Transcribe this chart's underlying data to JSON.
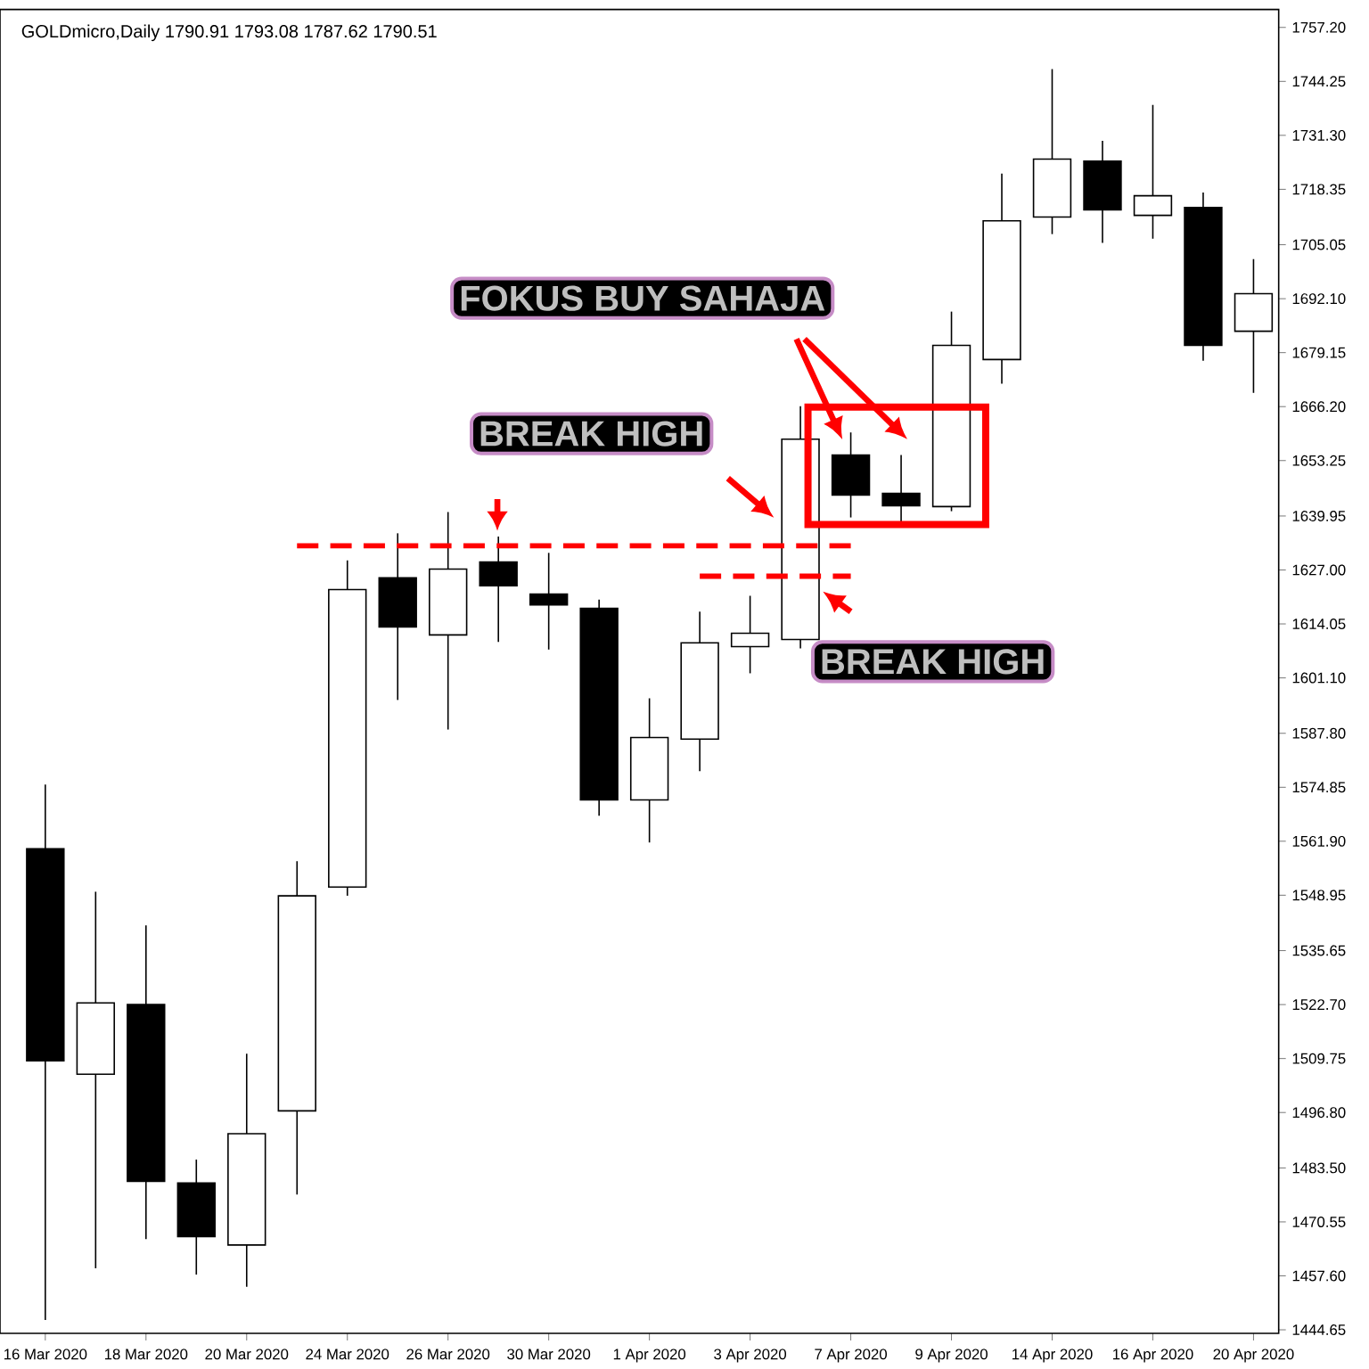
{
  "chart_data": {
    "type": "candlestick",
    "title": "GOLDmicro,Daily  1790.91 1793.08 1787.62 1790.51",
    "categories": [
      "16 Mar 2020",
      null,
      "18 Mar 2020",
      null,
      "20 Mar 2020",
      null,
      "24 Mar 2020",
      null,
      "26 Mar 2020",
      null,
      "30 Mar 2020",
      null,
      "1 Apr 2020",
      null,
      "3 Apr 2020",
      null,
      "7 Apr 2020",
      null,
      "9 Apr 2020",
      null,
      "14 Apr 2020",
      null,
      "16 Apr 2020",
      null,
      "20 Apr 2020"
    ],
    "ohlc": [
      [
        1560.1,
        1575.5,
        1447.0,
        1509.2
      ],
      [
        1506.0,
        1549.8,
        1459.4,
        1523.1
      ],
      [
        1522.7,
        1541.7,
        1466.4,
        1480.3
      ],
      [
        1479.9,
        1485.5,
        1457.9,
        1467.0
      ],
      [
        1465.0,
        1510.9,
        1455.0,
        1491.7
      ],
      [
        1497.2,
        1557.1,
        1477.1,
        1548.8
      ],
      [
        1550.9,
        1629.3,
        1548.8,
        1622.3
      ],
      [
        1625.1,
        1635.8,
        1595.8,
        1613.3
      ],
      [
        1611.4,
        1640.9,
        1588.7,
        1627.2
      ],
      [
        1628.9,
        1635.0,
        1609.7,
        1623.2
      ],
      [
        1621.2,
        1631.1,
        1607.9,
        1618.6
      ],
      [
        1617.8,
        1619.9,
        1568.0,
        1571.8
      ],
      [
        1571.8,
        1596.2,
        1561.6,
        1586.8
      ],
      [
        1586.4,
        1617.0,
        1578.7,
        1609.5
      ],
      [
        1608.6,
        1620.8,
        1602.2,
        1611.8
      ],
      [
        1610.3,
        1666.3,
        1608.2,
        1658.4
      ],
      [
        1654.6,
        1660.0,
        1639.6,
        1645.0
      ],
      [
        1645.4,
        1654.6,
        1638.5,
        1642.4
      ],
      [
        1642.2,
        1689.0,
        1641.1,
        1680.9
      ],
      [
        1677.5,
        1722.1,
        1671.7,
        1710.8
      ],
      [
        1711.7,
        1747.2,
        1707.6,
        1725.6
      ],
      [
        1725.1,
        1730.0,
        1705.5,
        1713.4
      ],
      [
        1712.1,
        1738.6,
        1706.5,
        1716.8
      ],
      [
        1714.0,
        1717.6,
        1677.2,
        1680.9
      ],
      [
        1684.3,
        1701.6,
        1669.5,
        1693.3
      ]
    ],
    "series": [
      {
        "type": "line",
        "color": "#ff0000",
        "line_style": "dashed",
        "values": [
          null,
          null,
          null,
          null,
          null,
          1632.8,
          1632.8,
          1632.8,
          1632.8,
          1632.8,
          1632.8,
          1632.8,
          1632.8,
          1632.8,
          1632.8,
          1632.8,
          1632.8,
          null,
          null,
          null,
          null,
          null,
          null,
          null,
          null
        ]
      },
      {
        "type": "line",
        "color": "#ff0000",
        "line_style": "dashed",
        "values": [
          null,
          null,
          null,
          null,
          null,
          null,
          null,
          null,
          null,
          null,
          null,
          null,
          null,
          1625.5,
          1625.5,
          1625.5,
          1625.5,
          null,
          null,
          null,
          null,
          null,
          null,
          null,
          null
        ]
      }
    ],
    "annotations": [
      "FOKUS BUY SAHAJA",
      "BREAK HIGH",
      "BREAK HIGH"
    ],
    "ylim": [
      1443.8,
      1761.5
    ],
    "yticks": [
      {
        "value": 1757.2,
        "label": "1757.20"
      },
      {
        "value": 1744.25,
        "label": "1744.25"
      },
      {
        "value": 1731.3,
        "label": "1731.30"
      },
      {
        "value": 1718.35,
        "label": "1718.35"
      },
      {
        "value": 1705.05,
        "label": "1705.05"
      },
      {
        "value": 1692.1,
        "label": "1692.10"
      },
      {
        "value": 1679.15,
        "label": "1679.15"
      },
      {
        "value": 1666.2,
        "label": "1666.20"
      },
      {
        "value": 1653.25,
        "label": "1653.25"
      },
      {
        "value": 1639.95,
        "label": "1639.95"
      },
      {
        "value": 1627.0,
        "label": "1627.00"
      },
      {
        "value": 1614.05,
        "label": "1614.05"
      },
      {
        "value": 1601.1,
        "label": "1601.10"
      },
      {
        "value": 1587.8,
        "label": "1587.80"
      },
      {
        "value": 1574.85,
        "label": "1574.85"
      },
      {
        "value": 1561.9,
        "label": "1561.90"
      },
      {
        "value": 1548.95,
        "label": "1548.95"
      },
      {
        "value": 1535.65,
        "label": "1535.65"
      },
      {
        "value": 1522.7,
        "label": "1522.70"
      },
      {
        "value": 1509.75,
        "label": "1509.75"
      },
      {
        "value": 1496.8,
        "label": "1496.80"
      },
      {
        "value": 1483.5,
        "label": "1483.50"
      },
      {
        "value": 1470.55,
        "label": "1470.55"
      },
      {
        "value": 1457.6,
        "label": "1457.60"
      },
      {
        "value": 1444.65,
        "label": "1444.65"
      }
    ]
  }
}
